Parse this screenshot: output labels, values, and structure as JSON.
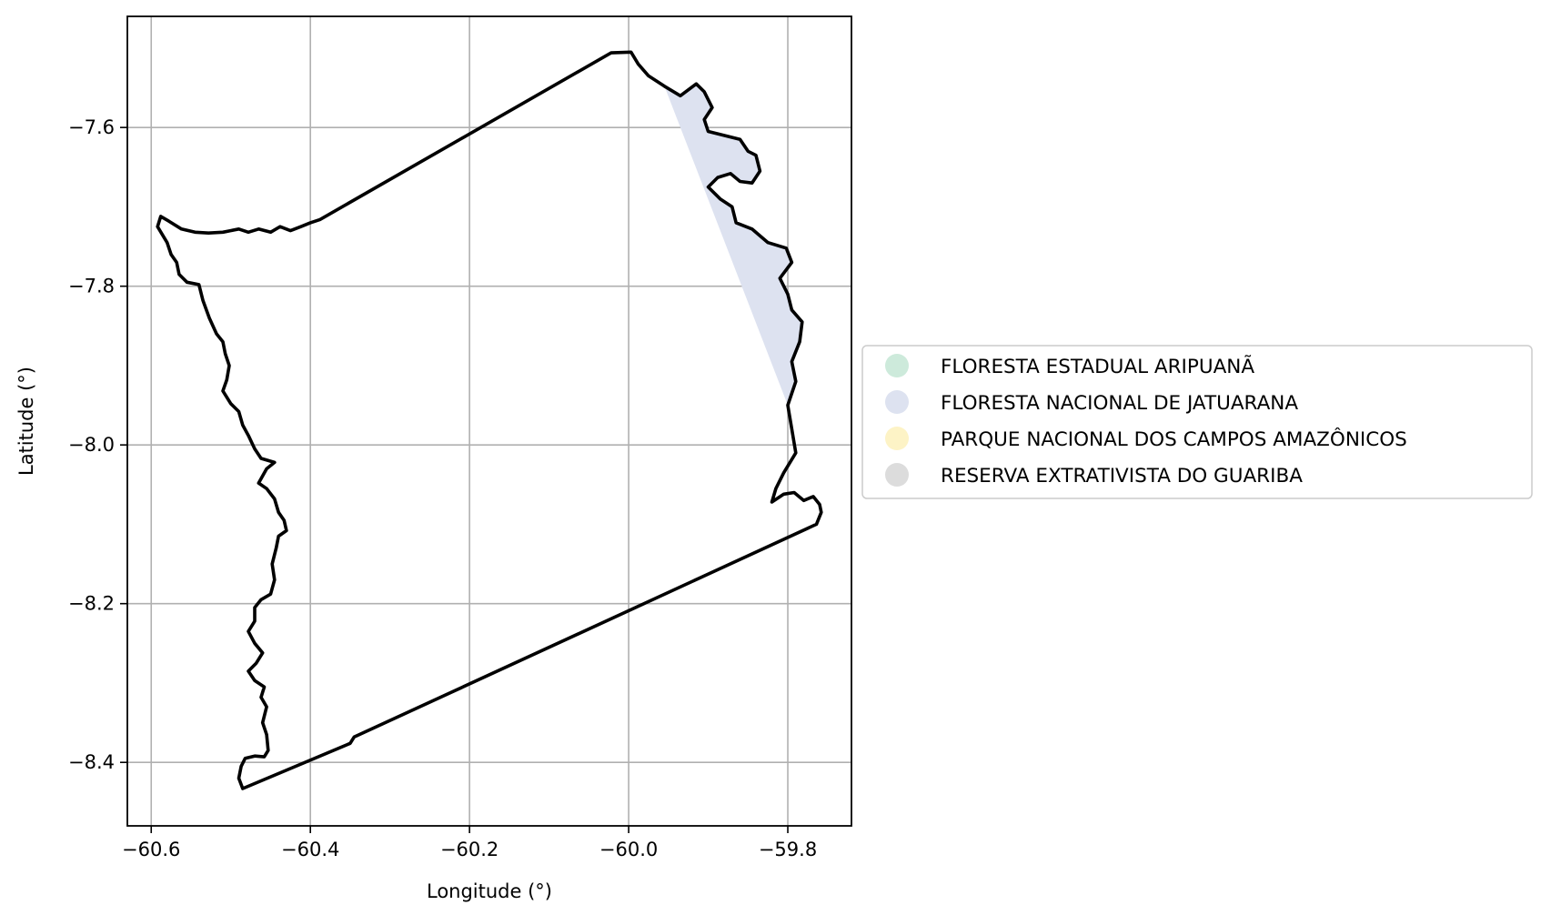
{
  "chart_data": {
    "type": "map",
    "xlabel": "Longitude (°)",
    "ylabel": "Latitude (°)",
    "xlim": [
      -60.63,
      -59.72
    ],
    "ylim": [
      -8.48,
      -7.46
    ],
    "grid": true,
    "legend_placement": "center-right outside",
    "x_ticks": [
      -60.6,
      -60.4,
      -60.2,
      -60.0,
      -59.8
    ],
    "y_ticks": [
      -7.6,
      -7.8,
      -8.0,
      -8.2,
      -8.4
    ],
    "x_tick_labels": [
      "−60.6",
      "−60.4",
      "−60.2",
      "−60.0",
      "−59.8"
    ],
    "y_tick_labels": [
      "−7.6",
      "−7.8",
      "−8.0",
      "−8.2",
      "−8.4"
    ],
    "legend": [
      {
        "label": "FLORESTA ESTADUAL ARIPUANÃ",
        "color": "#cdeadb"
      },
      {
        "label": "FLORESTA NACIONAL DE JATUARANA",
        "color": "#dde2f0"
      },
      {
        "label": "PARQUE NACIONAL DOS CAMPOS AMAZÔNICOS",
        "color": "#fdf3c6"
      },
      {
        "label": "RESERVA EXTRATIVISTA DO GUARIBA",
        "color": "#dcdcdc"
      }
    ],
    "boundary": [
      [
        -60.485,
        -8.433
      ],
      [
        -60.49,
        -8.42
      ],
      [
        -60.487,
        -8.405
      ],
      [
        -60.482,
        -8.395
      ],
      [
        -60.47,
        -8.392
      ],
      [
        -60.458,
        -8.393
      ],
      [
        -60.453,
        -8.385
      ],
      [
        -60.455,
        -8.365
      ],
      [
        -60.46,
        -8.35
      ],
      [
        -60.455,
        -8.33
      ],
      [
        -60.462,
        -8.318
      ],
      [
        -60.458,
        -8.305
      ],
      [
        -60.47,
        -8.297
      ],
      [
        -60.478,
        -8.285
      ],
      [
        -60.468,
        -8.275
      ],
      [
        -60.46,
        -8.262
      ],
      [
        -60.47,
        -8.25
      ],
      [
        -60.478,
        -8.235
      ],
      [
        -60.47,
        -8.222
      ],
      [
        -60.47,
        -8.205
      ],
      [
        -60.462,
        -8.195
      ],
      [
        -60.45,
        -8.188
      ],
      [
        -60.445,
        -8.17
      ],
      [
        -60.448,
        -8.15
      ],
      [
        -60.443,
        -8.13
      ],
      [
        -60.44,
        -8.115
      ],
      [
        -60.43,
        -8.108
      ],
      [
        -60.433,
        -8.095
      ],
      [
        -60.44,
        -8.085
      ],
      [
        -60.445,
        -8.068
      ],
      [
        -60.455,
        -8.055
      ],
      [
        -60.465,
        -8.048
      ],
      [
        -60.455,
        -8.03
      ],
      [
        -60.445,
        -8.022
      ],
      [
        -60.462,
        -8.017
      ],
      [
        -60.47,
        -8.005
      ],
      [
        -60.478,
        -7.988
      ],
      [
        -60.485,
        -7.975
      ],
      [
        -60.49,
        -7.958
      ],
      [
        -60.5,
        -7.948
      ],
      [
        -60.51,
        -7.932
      ],
      [
        -60.505,
        -7.918
      ],
      [
        -60.502,
        -7.9
      ],
      [
        -60.507,
        -7.885
      ],
      [
        -60.51,
        -7.87
      ],
      [
        -60.518,
        -7.86
      ],
      [
        -60.527,
        -7.84
      ],
      [
        -60.535,
        -7.818
      ],
      [
        -60.54,
        -7.798
      ],
      [
        -60.555,
        -7.795
      ],
      [
        -60.565,
        -7.785
      ],
      [
        -60.568,
        -7.77
      ],
      [
        -60.575,
        -7.76
      ],
      [
        -60.58,
        -7.745
      ],
      [
        -60.592,
        -7.725
      ],
      [
        -60.588,
        -7.712
      ],
      [
        -60.578,
        -7.718
      ],
      [
        -60.562,
        -7.728
      ],
      [
        -60.545,
        -7.732
      ],
      [
        -60.528,
        -7.733
      ],
      [
        -60.51,
        -7.732
      ],
      [
        -60.49,
        -7.728
      ],
      [
        -60.478,
        -7.732
      ],
      [
        -60.465,
        -7.728
      ],
      [
        -60.45,
        -7.732
      ],
      [
        -60.438,
        -7.725
      ],
      [
        -60.425,
        -7.73
      ],
      [
        -60.412,
        -7.725
      ],
      [
        -60.4,
        -7.72
      ],
      [
        -60.388,
        -7.716
      ],
      [
        -60.022,
        -7.506
      ],
      [
        -59.997,
        -7.505
      ],
      [
        -59.988,
        -7.52
      ],
      [
        -59.975,
        -7.535
      ],
      [
        -59.955,
        -7.548
      ],
      [
        -59.935,
        -7.56
      ],
      [
        -59.915,
        -7.545
      ],
      [
        -59.905,
        -7.555
      ],
      [
        -59.895,
        -7.575
      ],
      [
        -59.905,
        -7.59
      ],
      [
        -59.9,
        -7.605
      ],
      [
        -59.88,
        -7.61
      ],
      [
        -59.86,
        -7.615
      ],
      [
        -59.85,
        -7.63
      ],
      [
        -59.84,
        -7.635
      ],
      [
        -59.835,
        -7.655
      ],
      [
        -59.845,
        -7.67
      ],
      [
        -59.86,
        -7.668
      ],
      [
        -59.872,
        -7.658
      ],
      [
        -59.888,
        -7.663
      ],
      [
        -59.9,
        -7.675
      ],
      [
        -59.885,
        -7.69
      ],
      [
        -59.87,
        -7.7
      ],
      [
        -59.865,
        -7.72
      ],
      [
        -59.845,
        -7.728
      ],
      [
        -59.825,
        -7.745
      ],
      [
        -59.802,
        -7.752
      ],
      [
        -59.795,
        -7.77
      ],
      [
        -59.81,
        -7.79
      ],
      [
        -59.8,
        -7.81
      ],
      [
        -59.795,
        -7.83
      ],
      [
        -59.782,
        -7.845
      ],
      [
        -59.785,
        -7.87
      ],
      [
        -59.795,
        -7.895
      ],
      [
        -59.79,
        -7.92
      ],
      [
        -59.8,
        -7.95
      ],
      [
        -59.795,
        -7.98
      ],
      [
        -59.79,
        -8.01
      ],
      [
        -59.805,
        -8.035
      ],
      [
        -59.815,
        -8.055
      ],
      [
        -59.82,
        -8.072
      ],
      [
        -59.805,
        -8.062
      ],
      [
        -59.792,
        -8.06
      ],
      [
        -59.78,
        -8.07
      ],
      [
        -59.768,
        -8.065
      ],
      [
        -59.76,
        -8.075
      ],
      [
        -59.758,
        -8.085
      ],
      [
        -59.764,
        -8.1
      ],
      [
        -60.345,
        -8.368
      ],
      [
        -60.35,
        -8.376
      ],
      [
        -60.485,
        -8.433
      ]
    ],
    "jatuarana_area": [
      [
        -59.955,
        -7.548
      ],
      [
        -59.935,
        -7.56
      ],
      [
        -59.915,
        -7.545
      ],
      [
        -59.905,
        -7.555
      ],
      [
        -59.895,
        -7.575
      ],
      [
        -59.905,
        -7.59
      ],
      [
        -59.9,
        -7.605
      ],
      [
        -59.88,
        -7.61
      ],
      [
        -59.86,
        -7.615
      ],
      [
        -59.85,
        -7.63
      ],
      [
        -59.84,
        -7.635
      ],
      [
        -59.835,
        -7.655
      ],
      [
        -59.845,
        -7.67
      ],
      [
        -59.86,
        -7.668
      ],
      [
        -59.872,
        -7.658
      ],
      [
        -59.888,
        -7.663
      ],
      [
        -59.9,
        -7.675
      ],
      [
        -59.885,
        -7.69
      ],
      [
        -59.87,
        -7.7
      ],
      [
        -59.865,
        -7.72
      ],
      [
        -59.845,
        -7.728
      ],
      [
        -59.825,
        -7.745
      ],
      [
        -59.802,
        -7.752
      ],
      [
        -59.795,
        -7.77
      ],
      [
        -59.81,
        -7.79
      ],
      [
        -59.8,
        -7.81
      ],
      [
        -59.795,
        -7.83
      ],
      [
        -59.782,
        -7.845
      ],
      [
        -59.785,
        -7.87
      ],
      [
        -59.795,
        -7.895
      ],
      [
        -59.79,
        -7.92
      ],
      [
        -59.8,
        -7.95
      ]
    ]
  }
}
